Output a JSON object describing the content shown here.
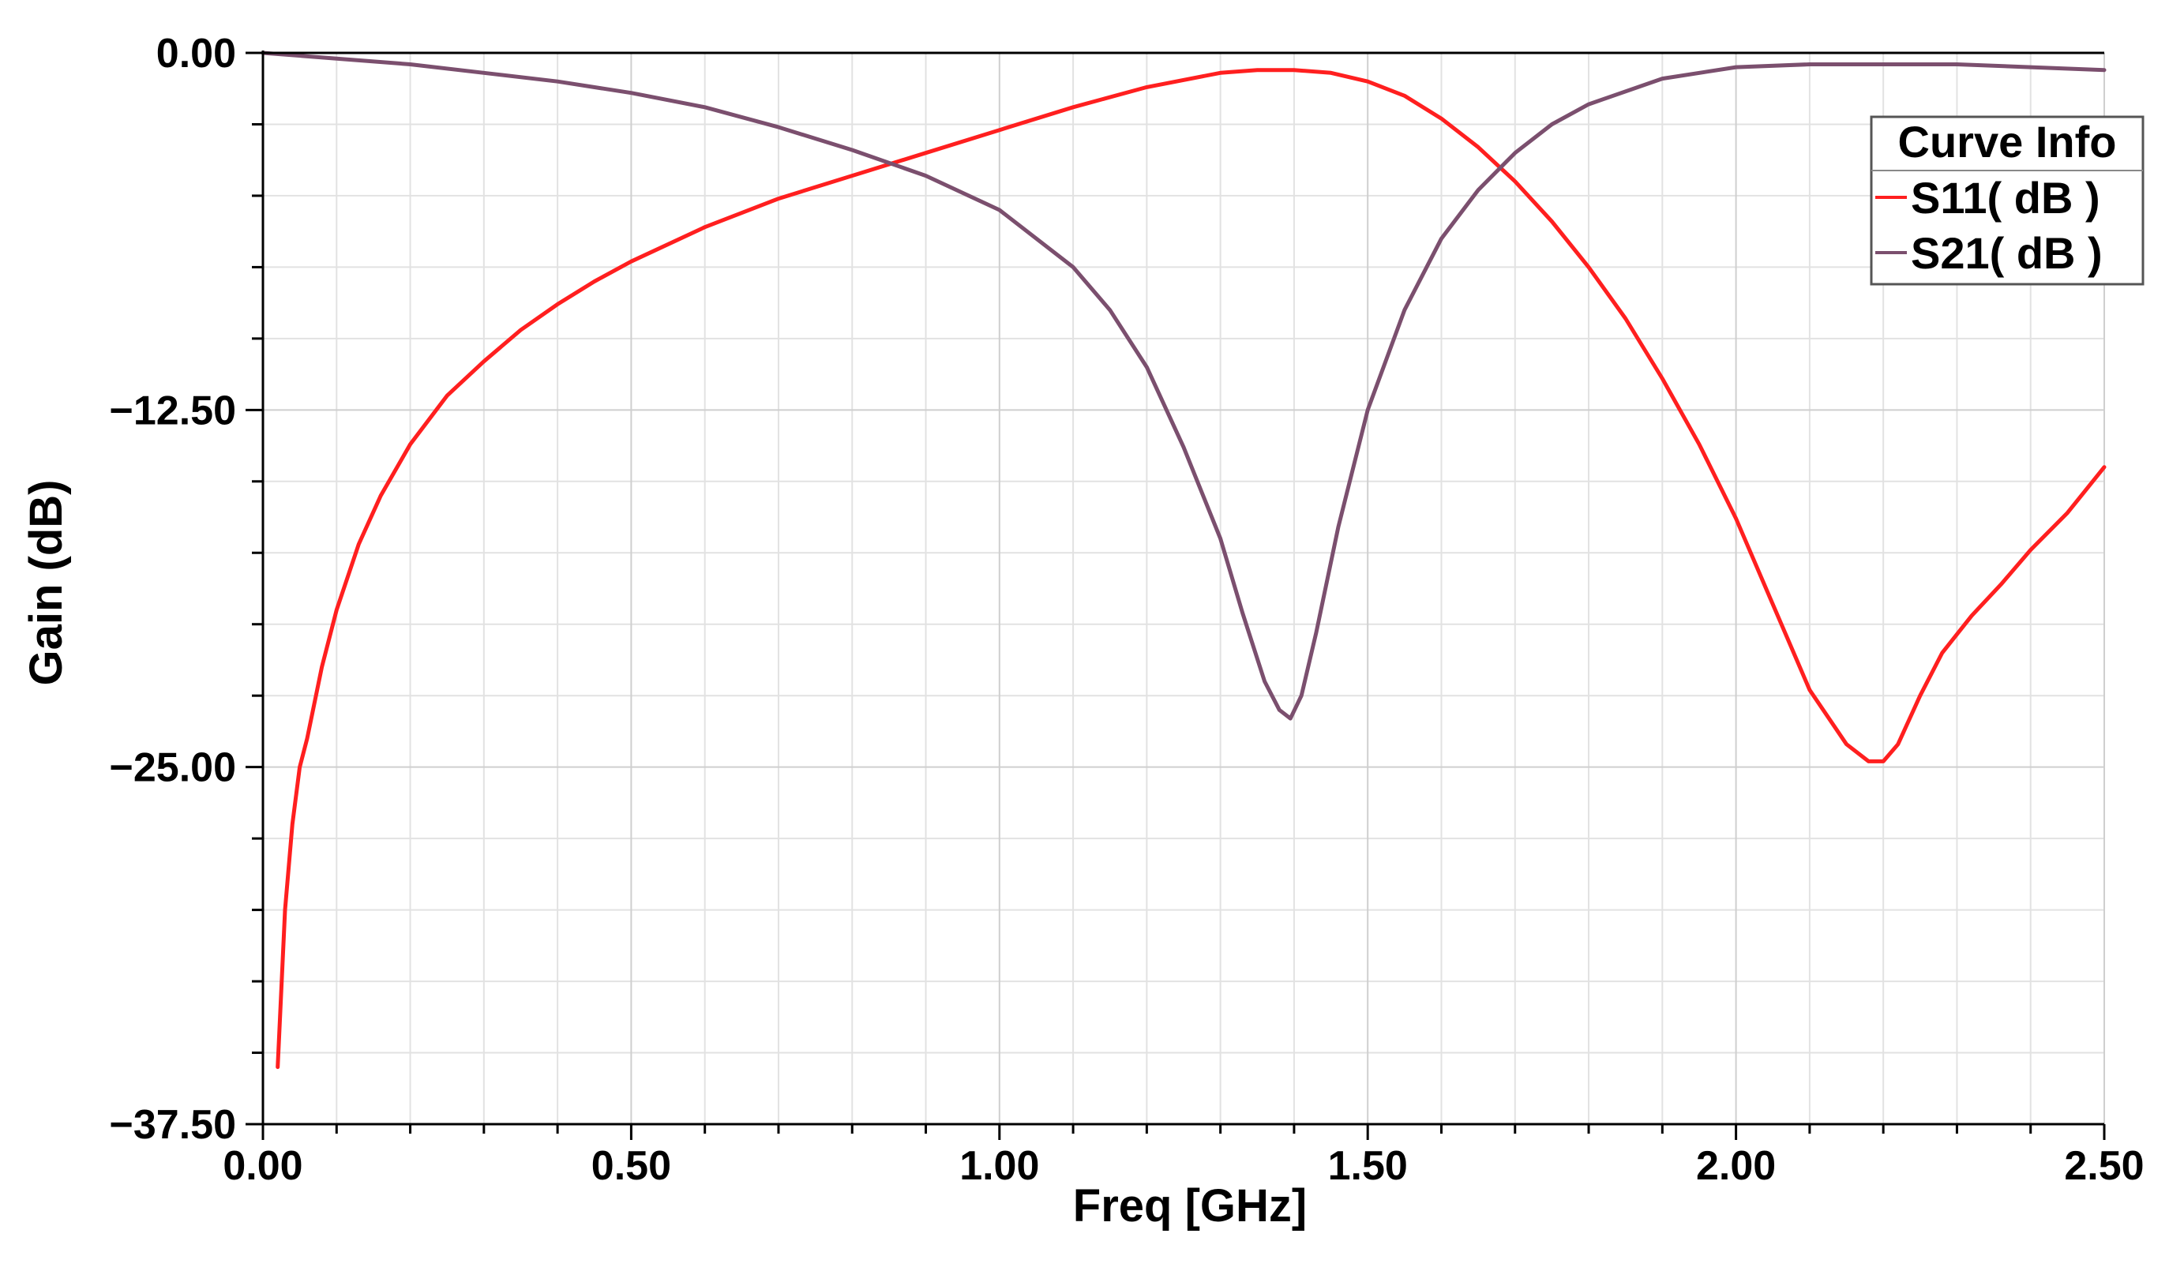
{
  "chart_data": {
    "type": "line",
    "xlabel": "Freq [GHz]",
    "ylabel": "Gain (dB)",
    "xlim": [
      0,
      2.5
    ],
    "ylim": [
      -37.5,
      0
    ],
    "x_ticks": [
      0,
      0.5,
      1.0,
      1.5,
      2.0,
      2.5
    ],
    "x_tick_labels": [
      "0.00",
      "0.50",
      "1.00",
      "1.50",
      "2.00",
      "2.50"
    ],
    "y_ticks": [
      0,
      -12.5,
      -25,
      -37.5
    ],
    "y_tick_labels": [
      "0.00",
      "−12.50",
      "−25.00",
      "−37.50"
    ],
    "grid": true,
    "legend": {
      "title": "Curve Info",
      "placement": "top-right"
    },
    "series": [
      {
        "name": "S11( dB )",
        "color": "#ff1f1f",
        "x": [
          0.02,
          0.03,
          0.04,
          0.05,
          0.06,
          0.08,
          0.1,
          0.13,
          0.16,
          0.2,
          0.25,
          0.3,
          0.35,
          0.4,
          0.45,
          0.5,
          0.6,
          0.7,
          0.8,
          0.9,
          1.0,
          1.1,
          1.2,
          1.3,
          1.35,
          1.4,
          1.45,
          1.5,
          1.55,
          1.6,
          1.65,
          1.7,
          1.75,
          1.8,
          1.85,
          1.9,
          1.95,
          2.0,
          2.05,
          2.1,
          2.15,
          2.18,
          2.2,
          2.22,
          2.25,
          2.28,
          2.32,
          2.36,
          2.4,
          2.45,
          2.5
        ],
        "y": [
          -35.5,
          -30.0,
          -27.0,
          -25.0,
          -24.0,
          -21.5,
          -19.5,
          -17.2,
          -15.5,
          -13.7,
          -12.0,
          -10.8,
          -9.7,
          -8.8,
          -8.0,
          -7.3,
          -6.1,
          -5.1,
          -4.3,
          -3.5,
          -2.7,
          -1.9,
          -1.2,
          -0.7,
          -0.6,
          -0.6,
          -0.7,
          -1.0,
          -1.5,
          -2.3,
          -3.3,
          -4.5,
          -5.9,
          -7.5,
          -9.3,
          -11.4,
          -13.7,
          -16.3,
          -19.3,
          -22.3,
          -24.2,
          -24.8,
          -24.8,
          -24.2,
          -22.5,
          -21.0,
          -19.7,
          -18.6,
          -17.4,
          -16.1,
          -14.5
        ]
      },
      {
        "name": "S21( dB )",
        "color": "#7b4f6e",
        "x": [
          0.0,
          0.1,
          0.2,
          0.3,
          0.4,
          0.5,
          0.6,
          0.7,
          0.8,
          0.9,
          1.0,
          1.1,
          1.15,
          1.2,
          1.25,
          1.3,
          1.33,
          1.36,
          1.38,
          1.395,
          1.41,
          1.43,
          1.46,
          1.5,
          1.55,
          1.6,
          1.65,
          1.7,
          1.75,
          1.8,
          1.9,
          2.0,
          2.1,
          2.2,
          2.3,
          2.4,
          2.5
        ],
        "y": [
          0.0,
          -0.2,
          -0.4,
          -0.7,
          -1.0,
          -1.4,
          -1.9,
          -2.6,
          -3.4,
          -4.3,
          -5.5,
          -7.5,
          -9.0,
          -11.0,
          -13.8,
          -17.0,
          -19.6,
          -22.0,
          -23.0,
          -23.3,
          -22.5,
          -20.3,
          -16.6,
          -12.5,
          -9.0,
          -6.5,
          -4.8,
          -3.5,
          -2.5,
          -1.8,
          -0.9,
          -0.5,
          -0.4,
          -0.4,
          -0.4,
          -0.5,
          -0.6
        ]
      }
    ]
  }
}
